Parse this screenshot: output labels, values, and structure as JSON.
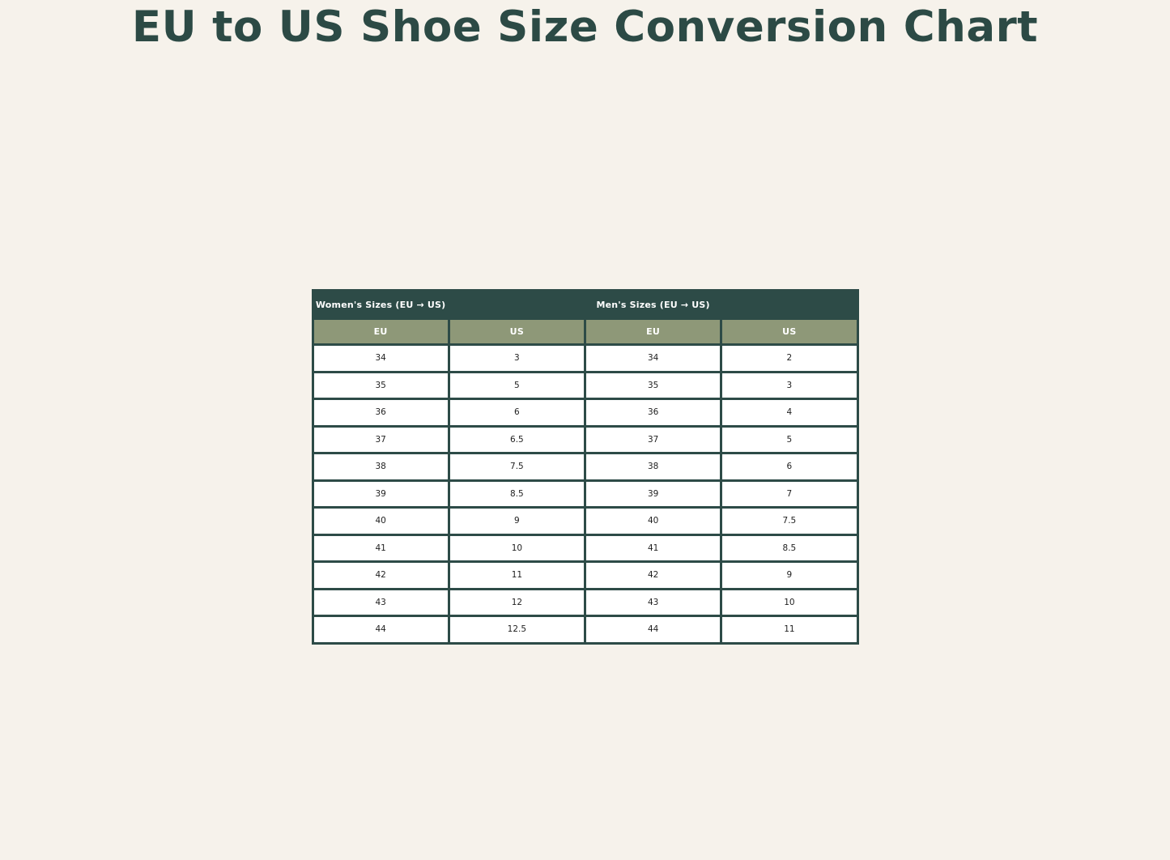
{
  "page": {
    "title": "EU to US Shoe Size Conversion Chart"
  },
  "colors": {
    "background": "#f6f2eb",
    "title_text": "#2c4a45",
    "header_dark_bg": "#2d4b47",
    "header_olive_bg": "#8e9878",
    "header_text": "#ffffff",
    "cell_bg": "#ffffff",
    "cell_text": "#1f1f1f",
    "border": "#2d4b47"
  },
  "table": {
    "group_headers": [
      "Women's Sizes (EU → US)",
      "",
      "Men's Sizes (EU → US)",
      ""
    ],
    "column_headers": [
      "EU",
      "US",
      "EU",
      "US"
    ],
    "rows": [
      [
        "34",
        "3",
        "34",
        "2"
      ],
      [
        "35",
        "5",
        "35",
        "3"
      ],
      [
        "36",
        "6",
        "36",
        "4"
      ],
      [
        "37",
        "6.5",
        "37",
        "5"
      ],
      [
        "38",
        "7.5",
        "38",
        "6"
      ],
      [
        "39",
        "8.5",
        "39",
        "7"
      ],
      [
        "40",
        "9",
        "40",
        "7.5"
      ],
      [
        "41",
        "10",
        "41",
        "8.5"
      ],
      [
        "42",
        "11",
        "42",
        "9"
      ],
      [
        "43",
        "12",
        "43",
        "10"
      ],
      [
        "44",
        "12.5",
        "44",
        "11"
      ]
    ]
  },
  "chart_data": {
    "type": "table",
    "title": "EU to US Shoe Size Conversion Chart",
    "sections": [
      {
        "label": "Women's Sizes (EU → US)",
        "columns": [
          "EU",
          "US"
        ],
        "rows": [
          [
            34,
            3
          ],
          [
            35,
            5
          ],
          [
            36,
            6
          ],
          [
            37,
            6.5
          ],
          [
            38,
            7.5
          ],
          [
            39,
            8.5
          ],
          [
            40,
            9
          ],
          [
            41,
            10
          ],
          [
            42,
            11
          ],
          [
            43,
            12
          ],
          [
            44,
            12.5
          ]
        ]
      },
      {
        "label": "Men's Sizes (EU → US)",
        "columns": [
          "EU",
          "US"
        ],
        "rows": [
          [
            34,
            2
          ],
          [
            35,
            3
          ],
          [
            36,
            4
          ],
          [
            37,
            5
          ],
          [
            38,
            6
          ],
          [
            39,
            7
          ],
          [
            40,
            7.5
          ],
          [
            41,
            8.5
          ],
          [
            42,
            9
          ],
          [
            43,
            10
          ],
          [
            44,
            11
          ]
        ]
      }
    ]
  }
}
